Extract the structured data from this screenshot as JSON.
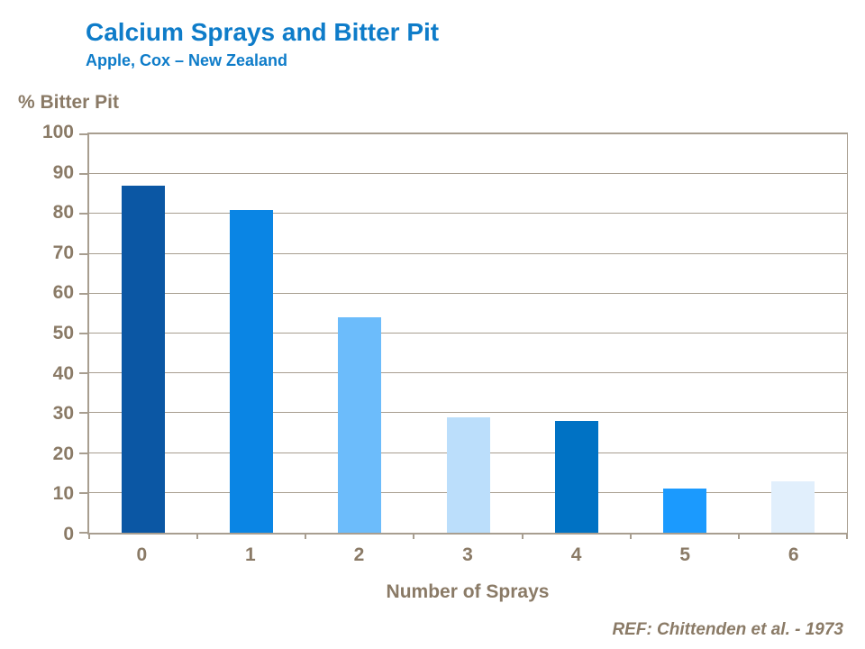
{
  "slide": {
    "title": "Calcium Sprays and Bitter Pit",
    "subtitle": "Apple, Cox – New Zealand",
    "reference": "REF: Chittenden et al. - 1973"
  },
  "colors": {
    "title_blue": "#0e7cc9",
    "axis_text_brown": "#8a7a66",
    "axis_line_tan": "#a89e90",
    "background": "#ffffff"
  },
  "chart_data": {
    "type": "bar",
    "title": "Calcium Sprays and Bitter Pit",
    "subtitle": "Apple, Cox – New Zealand",
    "categories": [
      "0",
      "1",
      "2",
      "3",
      "4",
      "5",
      "6"
    ],
    "values": [
      87,
      81,
      54,
      29,
      28,
      11,
      13
    ],
    "bar_colors": [
      "#0b57a4",
      "#0a85e4",
      "#6cbcfb",
      "#bbdefb",
      "#0072c4",
      "#1b9afe",
      "#e1effc"
    ],
    "xlabel": "Number of Sprays",
    "ylabel": "% Bitter Pit",
    "ylim": [
      0,
      100
    ],
    "yticks": [
      0,
      10,
      20,
      30,
      40,
      50,
      60,
      70,
      80,
      90,
      100
    ],
    "grid": true,
    "legend": "none",
    "reference": "REF: Chittenden et al. - 1973"
  }
}
